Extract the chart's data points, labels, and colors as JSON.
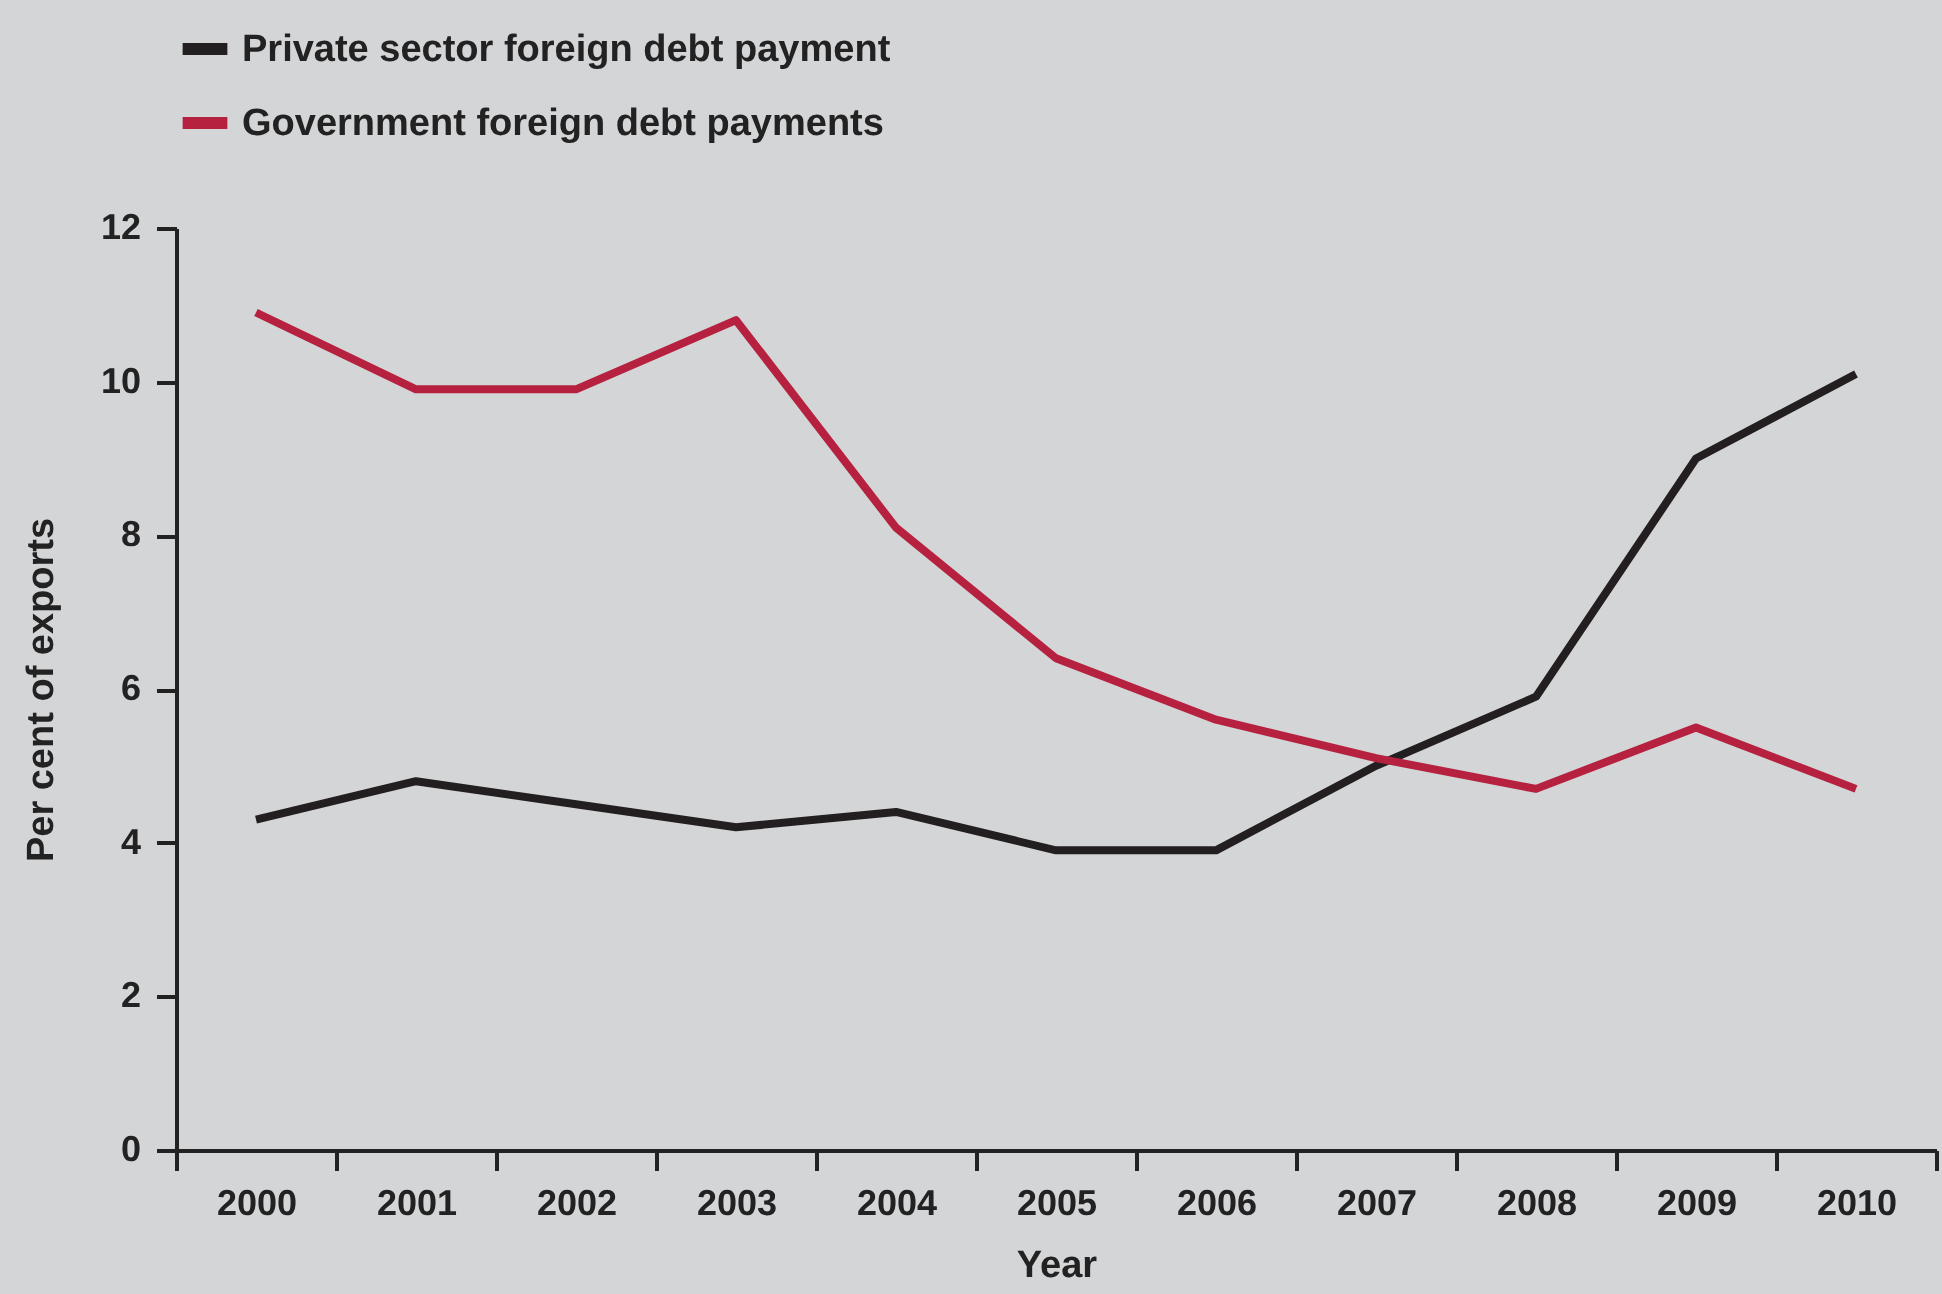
{
  "chart_data": {
    "type": "line",
    "xlabel": "Year",
    "ylabel": "Per cent of exports",
    "categories": [
      "2000",
      "2001",
      "2002",
      "2003",
      "2004",
      "2005",
      "2006",
      "2007",
      "2008",
      "2009",
      "2010"
    ],
    "series": [
      {
        "name": "Private sector foreign debt payment",
        "color": "#231f20",
        "values": [
          4.3,
          4.8,
          4.5,
          4.2,
          4.4,
          3.9,
          3.9,
          5.0,
          5.9,
          9.0,
          10.1
        ]
      },
      {
        "name": "Government foreign debt payments",
        "color": "#b5213f",
        "values": [
          10.9,
          9.9,
          9.9,
          10.8,
          8.1,
          6.4,
          5.6,
          5.1,
          4.7,
          5.5,
          4.7
        ]
      }
    ],
    "ylim": [
      0,
      12
    ],
    "yticks": [
      0,
      2,
      4,
      6,
      8,
      10,
      12
    ],
    "grid": false,
    "legend": "top",
    "line_style": "solid",
    "marker": "none"
  }
}
